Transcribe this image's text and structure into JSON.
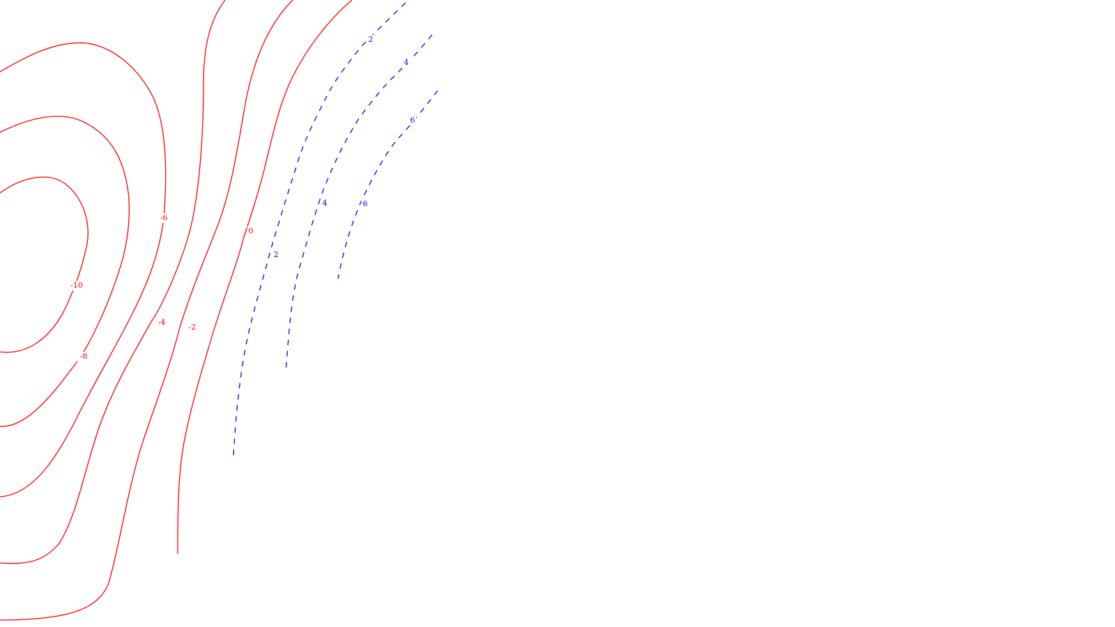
{
  "chart_data": {
    "type": "contour",
    "title": "",
    "xlabel": "",
    "ylabel": "",
    "legend": "none",
    "grid": false,
    "colors": {
      "negative": "#ff0000",
      "positive": "#0000ff"
    },
    "line_styles": {
      "negative": "solid",
      "positive": "dashed"
    },
    "levels": [
      {
        "value": -10,
        "labels": [
          "-10"
        ]
      },
      {
        "value": -8,
        "labels": [
          "-8"
        ]
      },
      {
        "value": -6,
        "labels": [
          "-6"
        ]
      },
      {
        "value": -4,
        "labels": [
          "-4"
        ]
      },
      {
        "value": -2,
        "labels": [
          "-2"
        ]
      },
      {
        "value": 0,
        "labels": [
          "0"
        ]
      },
      {
        "value": 2,
        "labels": [
          "2",
          "2"
        ]
      },
      {
        "value": 4,
        "labels": [
          "4",
          "4"
        ]
      },
      {
        "value": 6,
        "labels": [
          "6",
          "6"
        ]
      }
    ]
  }
}
